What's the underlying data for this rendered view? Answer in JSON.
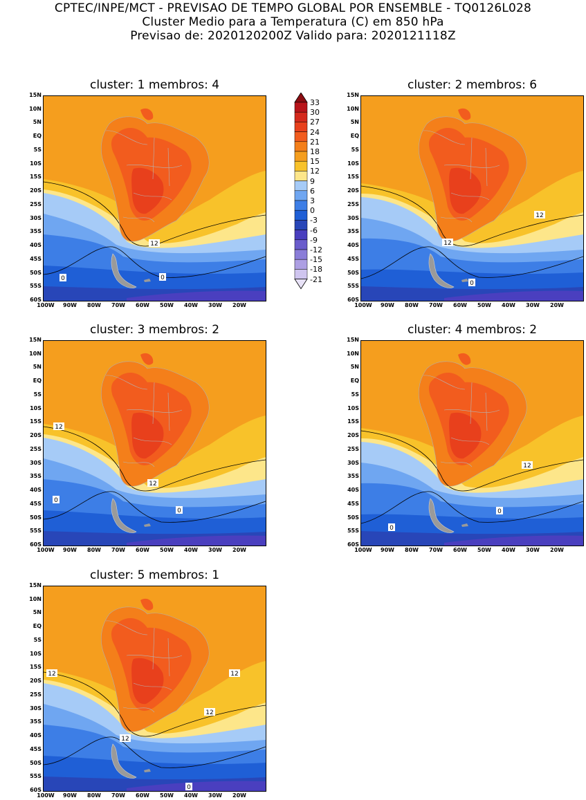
{
  "header": {
    "line1": "CPTEC/INPE/MCT - PREVISAO DE TEMPO GLOBAL POR ENSEMBLE - TQ0126L028",
    "line2": "Cluster Medio para a Temperatura (C) em 850 hPa",
    "line3": "Previsao de: 2020120200Z   Valido para: 2020121118Z"
  },
  "map_axes": {
    "lat_labels": [
      "15N",
      "10N",
      "5N",
      "EQ",
      "5S",
      "10S",
      "15S",
      "20S",
      "25S",
      "30S",
      "35S",
      "40S",
      "45S",
      "50S",
      "55S",
      "60S"
    ],
    "lon_labels": [
      "100W",
      "90W",
      "80W",
      "70W",
      "60W",
      "50W",
      "40W",
      "30W",
      "20W"
    ]
  },
  "colorbar": {
    "levels": [
      "33",
      "30",
      "27",
      "24",
      "21",
      "18",
      "15",
      "12",
      "9",
      "6",
      "3",
      "0",
      "-3",
      "-6",
      "-9",
      "-12",
      "-15",
      "-18",
      "-21"
    ],
    "colors": [
      "#8b0d12",
      "#b8141a",
      "#d4291c",
      "#e8401c",
      "#f25c1e",
      "#f47f1a",
      "#f59e1e",
      "#f8c22a",
      "#fde68a",
      "#a6cbf7",
      "#6fa6f1",
      "#3d7ee6",
      "#1f5fd6",
      "#2846b8",
      "#4a3fbf",
      "#6a5ccc",
      "#8a7dd8",
      "#ad9fe3",
      "#cfc5ef",
      "#e8e2f7"
    ]
  },
  "clusters": [
    {
      "title": "cluster: 1   membros: 4",
      "contour_labels": [
        "12",
        "0",
        "0"
      ]
    },
    {
      "title": "cluster: 2   membros: 6",
      "contour_labels": [
        "12",
        "12",
        "0"
      ]
    },
    {
      "title": "cluster: 3   membros: 2",
      "contour_labels": [
        "12",
        "12",
        "0",
        "0"
      ]
    },
    {
      "title": "cluster: 4   membros: 2",
      "contour_labels": [
        "12",
        "0",
        "0"
      ]
    },
    {
      "title": "cluster: 5   membros: 1",
      "contour_labels": [
        "12",
        "12",
        "12",
        "12",
        "0"
      ]
    }
  ]
}
